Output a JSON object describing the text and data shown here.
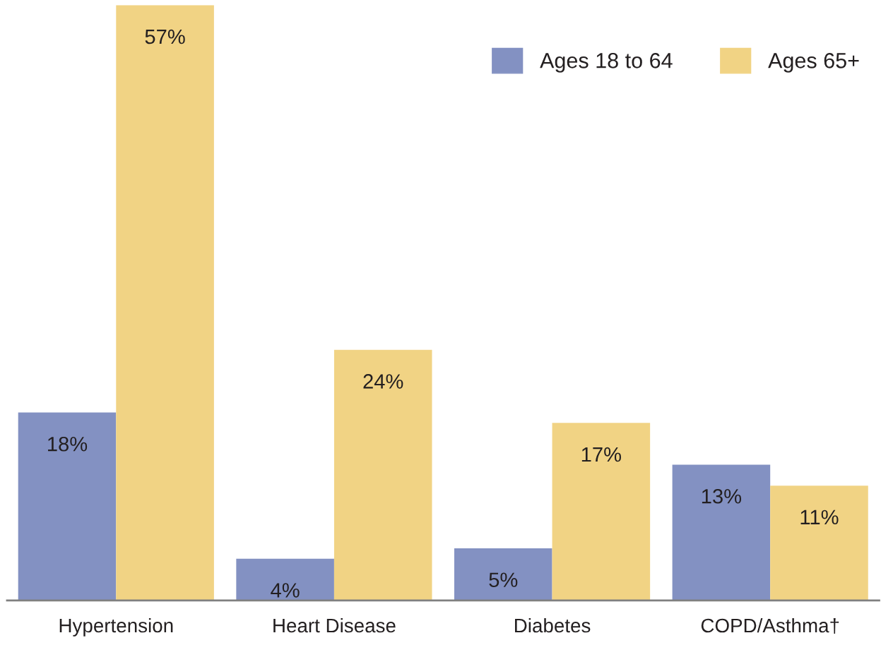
{
  "chart_data": {
    "type": "bar",
    "categories": [
      "Hypertension",
      "Heart Disease",
      "Diabetes",
      "COPD/Asthma†"
    ],
    "series": [
      {
        "name": "Ages 18 to 64",
        "color": "#8391c2",
        "values": [
          18,
          4,
          5,
          13
        ],
        "value_labels": [
          "18%",
          "4%",
          "5%",
          "13%"
        ]
      },
      {
        "name": "Ages 65+",
        "color": "#f1d384",
        "values": [
          57,
          24,
          17,
          11
        ],
        "value_labels": [
          "57%",
          "24%",
          "17%",
          "11%"
        ]
      }
    ],
    "ylim": [
      0,
      57
    ],
    "tick_labels": "x",
    "grid": false,
    "legend": "top right"
  }
}
